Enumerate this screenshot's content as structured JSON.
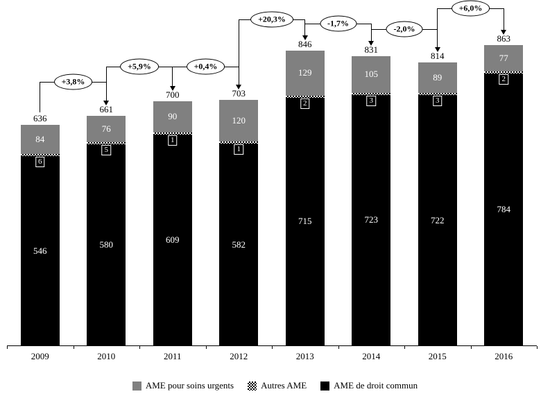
{
  "chart_data": {
    "type": "bar",
    "stacked": true,
    "title": "",
    "categories": [
      "2009",
      "2010",
      "2011",
      "2012",
      "2013",
      "2014",
      "2015",
      "2016"
    ],
    "series": [
      {
        "name": "AME de droit commun",
        "style": "solid-black",
        "color": "#000000",
        "values": [
          546,
          580,
          609,
          582,
          715,
          723,
          722,
          784
        ]
      },
      {
        "name": "Autres AME",
        "style": "checker-pattern",
        "values": [
          6,
          5,
          1,
          1,
          2,
          3,
          3,
          2
        ]
      },
      {
        "name": "AME pour soins urgents",
        "style": "solid-gray",
        "color": "#808080",
        "values": [
          84,
          76,
          90,
          120,
          129,
          105,
          89,
          77
        ]
      }
    ],
    "totals": [
      636,
      661,
      700,
      703,
      846,
      831,
      814,
      863
    ],
    "growth_annotations": [
      {
        "from": "2009",
        "to": "2010",
        "label": "+3,8%"
      },
      {
        "from": "2010",
        "to": "2011",
        "label": "+5,9%"
      },
      {
        "from": "2011",
        "to": "2012",
        "label": "+0,4%"
      },
      {
        "from": "2012",
        "to": "2013",
        "label": "+20,3%"
      },
      {
        "from": "2013",
        "to": "2014",
        "label": "-1,7%"
      },
      {
        "from": "2014",
        "to": "2015",
        "label": "-2,0%"
      },
      {
        "from": "2015",
        "to": "2016",
        "label": "+6,0%"
      }
    ],
    "legend_items": [
      {
        "label": "AME pour soins urgents",
        "swatch": "gray"
      },
      {
        "label": "Autres AME",
        "swatch": "checker"
      },
      {
        "label": "AME de droit commun",
        "swatch": "black"
      }
    ],
    "legend_position": "bottom",
    "y_axis_visible": false,
    "gridlines": false,
    "colors": {
      "gray": "#808080",
      "black": "#000000",
      "background": "#ffffff"
    }
  }
}
